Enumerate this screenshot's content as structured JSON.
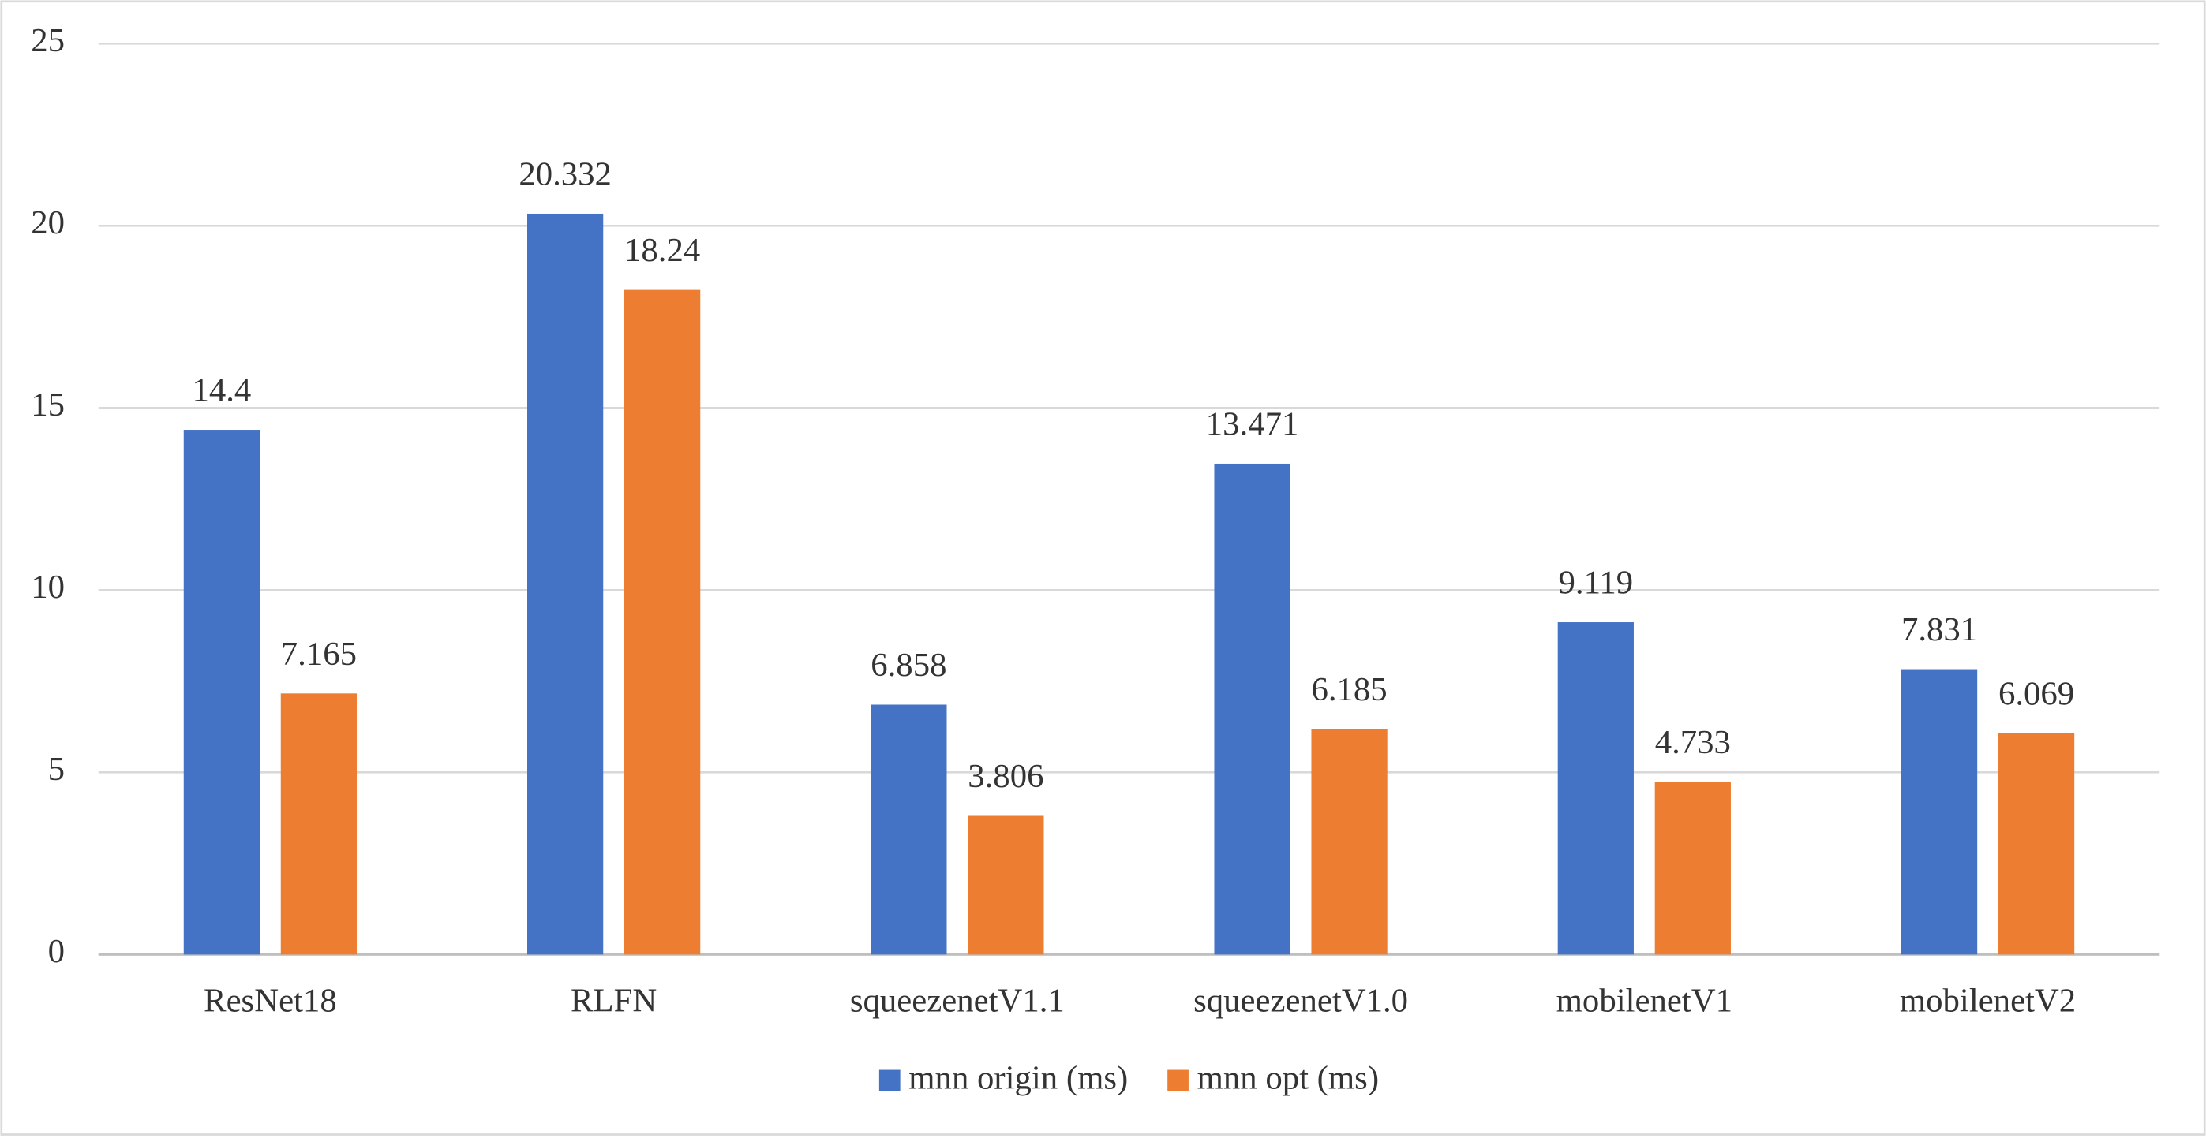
{
  "chart_data": {
    "type": "bar",
    "categories": [
      "ResNet18",
      "RLFN",
      "squeezenetV1.1",
      "squeezenetV1.0",
      "mobilenetV1",
      "mobilenetV2"
    ],
    "series": [
      {
        "name": "mnn origin (ms)",
        "color": "#4472c4",
        "values": [
          14.4,
          20.332,
          6.858,
          13.471,
          9.119,
          7.831
        ]
      },
      {
        "name": "mnn opt (ms)",
        "color": "#ed7d31",
        "values": [
          7.165,
          18.24,
          3.806,
          6.185,
          4.733,
          6.069
        ]
      }
    ],
    "ylim": [
      0,
      25
    ],
    "yticks": [
      0,
      5,
      10,
      15,
      20,
      25
    ],
    "grid": true,
    "legend": "bottom"
  }
}
